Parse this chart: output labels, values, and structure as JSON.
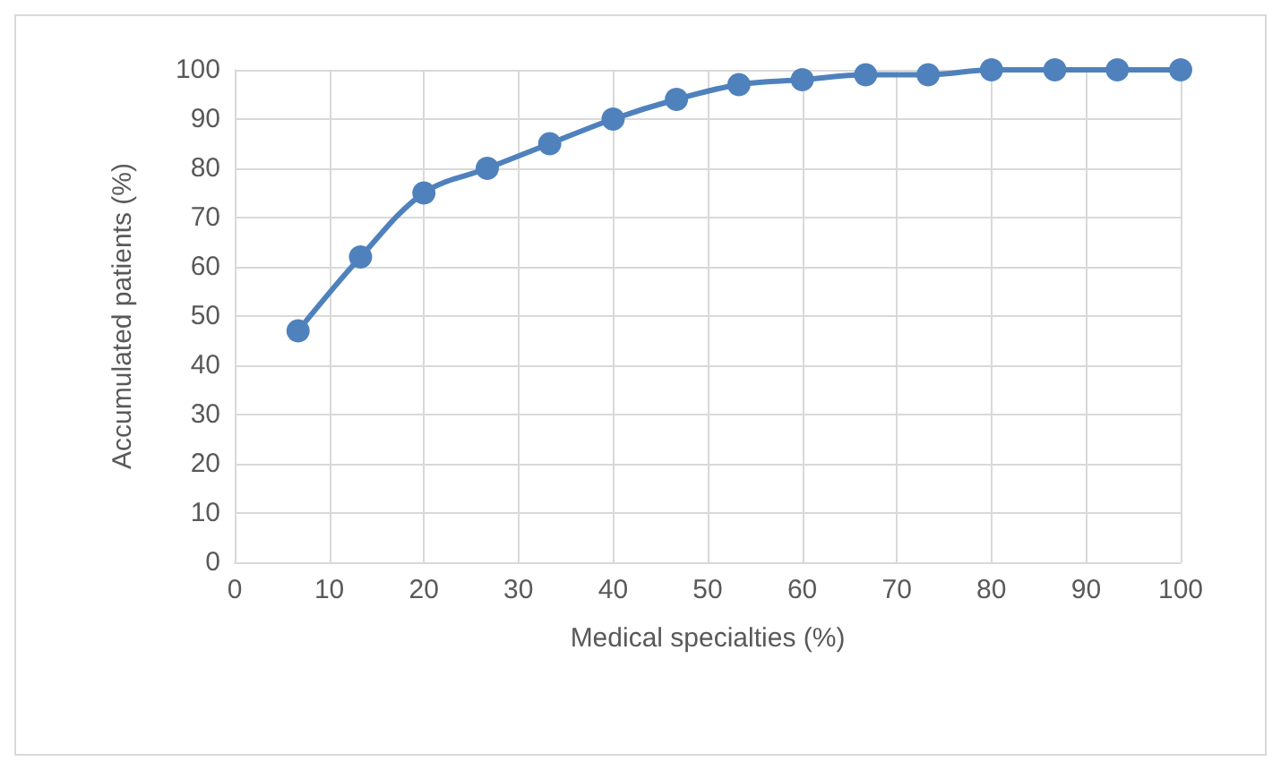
{
  "chart_data": {
    "type": "line",
    "xlabel": "Medical specialties (%)",
    "ylabel": "Accumulated patients (%)",
    "x": [
      6.7,
      13.3,
      20,
      26.7,
      33.3,
      40,
      46.7,
      53.3,
      60,
      66.7,
      73.3,
      80,
      86.7,
      93.3,
      100
    ],
    "series": [
      {
        "color": "#4f81bd",
        "values": [
          47,
          62,
          75,
          80,
          85,
          90,
          94,
          97,
          98,
          99,
          99,
          100,
          100,
          100,
          100
        ]
      }
    ],
    "xlim": [
      0,
      100
    ],
    "xticks": [
      0,
      10,
      20,
      30,
      40,
      50,
      60,
      70,
      80,
      90,
      100
    ],
    "ylim": [
      0,
      100
    ],
    "yticks": [
      0,
      10,
      20,
      30,
      40,
      50,
      60,
      70,
      80,
      90,
      100
    ],
    "grid": true,
    "marker": "circle",
    "line_style": "solid"
  }
}
